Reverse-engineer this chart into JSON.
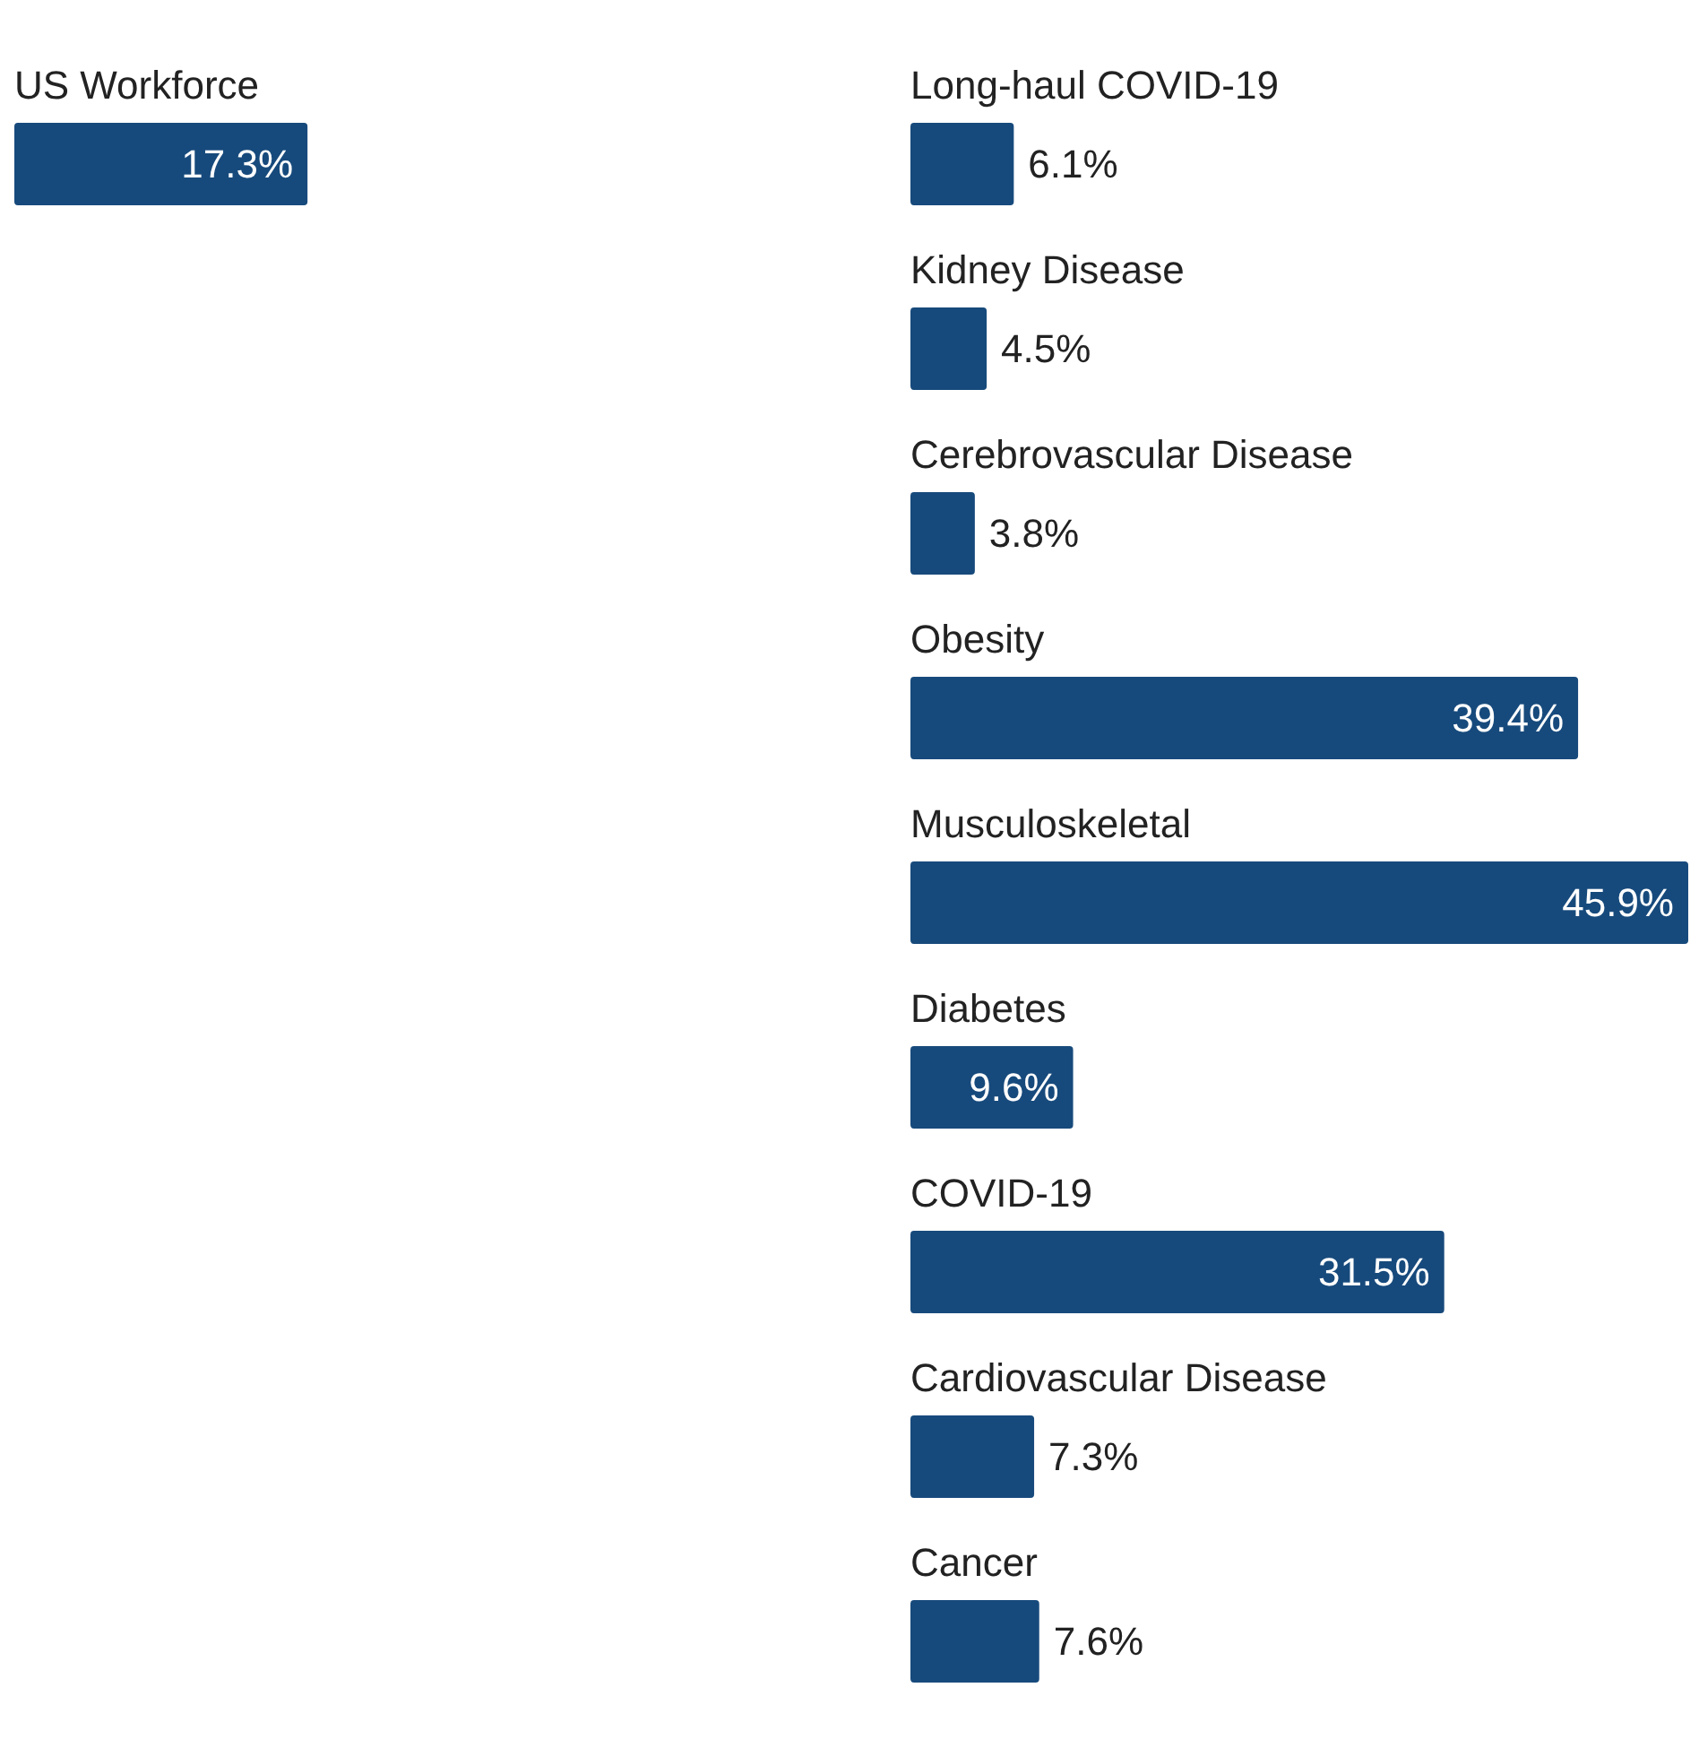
{
  "chart_data": [
    {
      "type": "bar",
      "orientation": "horizontal",
      "categories": [
        "US Workforce"
      ],
      "values": [
        17.3
      ],
      "value_labels": [
        "17.3%"
      ],
      "color": "#174a7c"
    },
    {
      "type": "bar",
      "orientation": "horizontal",
      "categories": [
        "Long-haul COVID-19",
        "Kidney Disease",
        "Cerebrovascular Disease",
        "Obesity",
        "Musculoskeletal",
        "Diabetes",
        "COVID-19",
        "Cardiovascular Disease",
        "Cancer"
      ],
      "values": [
        6.1,
        4.5,
        3.8,
        39.4,
        45.9,
        9.6,
        31.5,
        7.3,
        7.6
      ],
      "value_labels": [
        "6.1%",
        "4.5%",
        "3.8%",
        "39.4%",
        "45.9%",
        "9.6%",
        "31.5%",
        "7.3%",
        "7.6%"
      ],
      "color": "#174a7c"
    }
  ]
}
